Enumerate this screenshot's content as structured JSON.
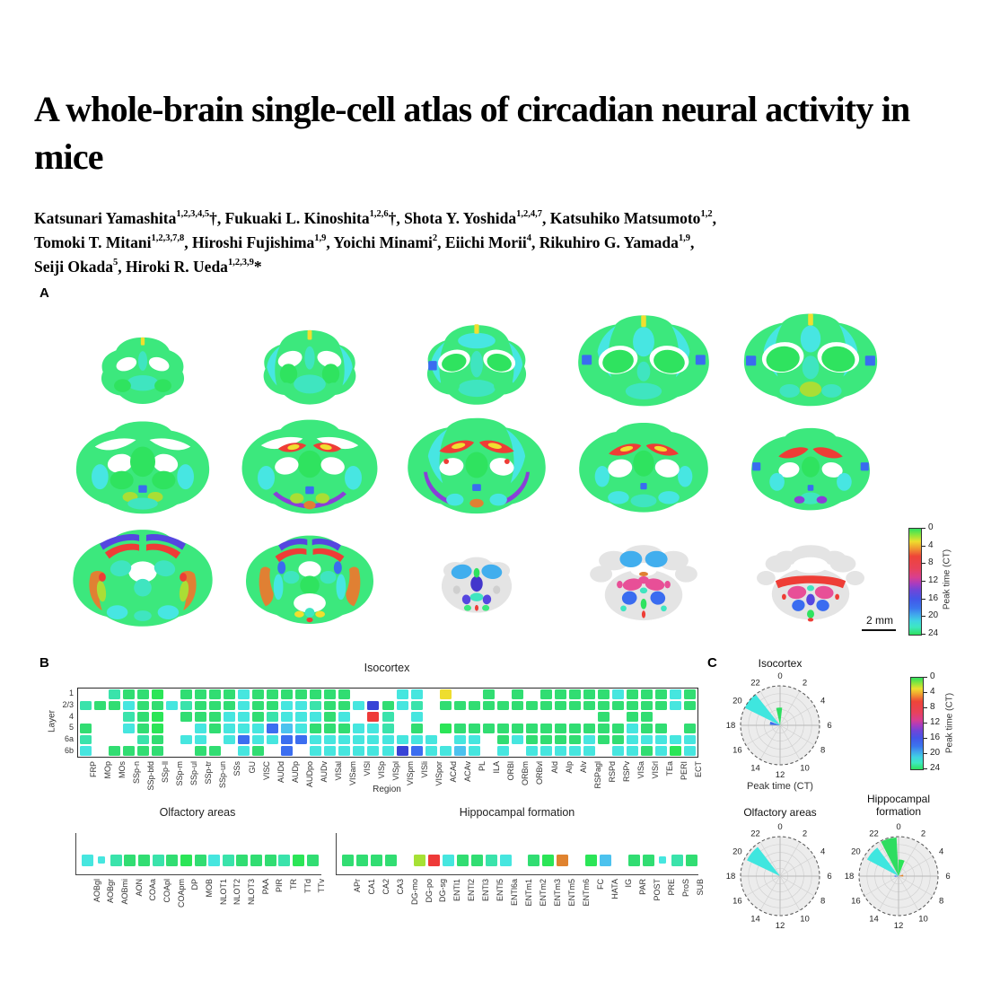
{
  "title": "A whole-brain single-cell atlas of circadian neural activity in mice",
  "authors": [
    [
      {
        "t": "Katsunari Yamashita",
        "s": "1,2,3,4,5"
      },
      {
        "t": "†, "
      },
      {
        "t": "Fukuaki L. Kinoshita",
        "s": "1,2,6"
      },
      {
        "t": "†, "
      },
      {
        "t": "Shota Y. Yoshida",
        "s": "1,2,4,7"
      },
      {
        "t": ", "
      },
      {
        "t": "Katsuhiko Matsumoto",
        "s": "1,2"
      },
      {
        "t": ","
      }
    ],
    [
      {
        "t": "Tomoki T. Mitani",
        "s": "1,2,3,7,8"
      },
      {
        "t": ", "
      },
      {
        "t": "Hiroshi Fujishima",
        "s": "1,9"
      },
      {
        "t": ", "
      },
      {
        "t": "Yoichi Minami",
        "s": "2"
      },
      {
        "t": ", "
      },
      {
        "t": "Eiichi Morii",
        "s": "4"
      },
      {
        "t": ", "
      },
      {
        "t": "Rikuhiro G. Yamada",
        "s": "1,9"
      },
      {
        "t": ","
      }
    ],
    [
      {
        "t": "Seiji Okada",
        "s": "5"
      },
      {
        "t": ", "
      },
      {
        "t": "Hiroki R. Ueda",
        "s": "1,2,3,9"
      },
      {
        "t": "*"
      }
    ]
  ],
  "heatmap_palette": {
    "G": "#31dd72",
    "E": "#2be557",
    "T": "#3ae3ab",
    "C": "#46e6df",
    "L": "#4cc2ee",
    "B": "#3b6ef0",
    "D": "#3843d6",
    "R": "#ee3a38",
    "Y": "#eedd2f",
    "O": "#e0832f",
    "YG": "#a6e135",
    "c": "#46e6df"
  },
  "panel_a": {
    "label": "A",
    "scalebar_label": "2 mm",
    "colorbar": {
      "label": "Peak time (CT)",
      "ticks": [
        "0",
        "4",
        "8",
        "12",
        "16",
        "20",
        "24"
      ]
    }
  },
  "panel_b": {
    "label": "B",
    "isocortex": {
      "title": "Isocortex",
      "xlabel": "Region",
      "ylabel": "Layer",
      "row_labels": [
        "1",
        "2/3",
        "4",
        "5",
        "6a",
        "6b"
      ],
      "col_labels": [
        "FRP",
        "MOp",
        "MOs",
        "SSp-n",
        "SSp-bfd",
        "SSp-ll",
        "SSp-m",
        "SSp-ul",
        "SSp-tr",
        "SSp-un",
        "SSs",
        "GU",
        "VISC",
        "AUDd",
        "AUDp",
        "AUDpo",
        "AUDv",
        "VISal",
        "VISam",
        "VISl",
        "VISp",
        "VISpl",
        "VISpm",
        "VISli",
        "VISpor",
        "ACAd",
        "ACAv",
        "PL",
        "ILA",
        "ORBl",
        "ORBm",
        "ORBvl",
        "AId",
        "AIp",
        "AIv",
        "RSPagl",
        "RSPd",
        "RSPv",
        "VISa",
        "VISrl",
        "TEa",
        "PERI",
        "ECT"
      ],
      "grid": [
        [
          "",
          "",
          "T",
          "G",
          "G",
          "E",
          "",
          "G",
          "G",
          "G",
          "G",
          "C",
          "G",
          "G",
          "G",
          "G",
          "G",
          "G",
          "G",
          "",
          "",
          "",
          "C",
          "C",
          "",
          "Y",
          "",
          "",
          "G",
          "",
          "G",
          "",
          "G",
          "G",
          "G",
          "G",
          "G",
          "C",
          "G",
          "G",
          "G",
          "C",
          "G"
        ],
        [
          "T",
          "G",
          "G",
          "C",
          "G",
          "G",
          "C",
          "T",
          "G",
          "G",
          "G",
          "C",
          "G",
          "G",
          "C",
          "C",
          "T",
          "G",
          "G",
          "C",
          "D",
          "G",
          "C",
          "T",
          "",
          "G",
          "G",
          "G",
          "G",
          "G",
          "G",
          "G",
          "G",
          "G",
          "G",
          "G",
          "G",
          "G",
          "G",
          "G",
          "G",
          "C",
          "G"
        ],
        [
          "",
          "",
          "",
          "T",
          "G",
          "E",
          "",
          "G",
          "G",
          "G",
          "C",
          "C",
          "G",
          "T",
          "C",
          "C",
          "C",
          "G",
          "C",
          "",
          "R",
          "T",
          "",
          "C",
          "",
          "",
          "",
          "",
          "",
          "",
          "",
          "",
          "",
          "",
          "",
          "",
          "G",
          "",
          "G",
          "G",
          "",
          "",
          ""
        ],
        [
          "G",
          "",
          "",
          "C",
          "G",
          "E",
          "",
          "",
          "C",
          "G",
          "C",
          "C",
          "C",
          "B",
          "L",
          "C",
          "G",
          "G",
          "G",
          "C",
          "C",
          "T",
          "",
          "G",
          "",
          "E",
          "G",
          "G",
          "G",
          "G",
          "G",
          "G",
          "G",
          "G",
          "G",
          "G",
          "G",
          "G",
          "C",
          "G",
          "G",
          "",
          "G"
        ],
        [
          "T",
          "",
          "",
          "",
          "T",
          "G",
          "",
          "C",
          "C",
          "",
          "C",
          "B",
          "C",
          "C",
          "B",
          "B",
          "C",
          "C",
          "C",
          "C",
          "C",
          "C",
          "C",
          "C",
          "C",
          "",
          "C",
          "C",
          "",
          "G",
          "C",
          "G",
          "G",
          "G",
          "G",
          "C",
          "G",
          "G",
          "C",
          "C",
          "C",
          "C",
          "C"
        ],
        [
          "C",
          "",
          "G",
          "G",
          "G",
          "G",
          "",
          "",
          "G",
          "G",
          "",
          "C",
          "G",
          "",
          "B",
          "",
          "C",
          "C",
          "C",
          "C",
          "C",
          "C",
          "D",
          "B",
          "C",
          "C",
          "L",
          "C",
          "",
          "C",
          "",
          "C",
          "C",
          "C",
          "C",
          "C",
          "",
          "C",
          "C",
          "G",
          "C",
          "E",
          "C"
        ]
      ]
    },
    "olfactory": {
      "title": "Olfactory areas",
      "col_labels": [
        "AOBgl",
        "AOBgr",
        "AOBmi",
        "AON",
        "COAa",
        "COApl",
        "COApm",
        "DP",
        "MOB",
        "NLOT1",
        "NLOT2",
        "NLOT3",
        "PAA",
        "PIR",
        "TR",
        "TTd",
        "TTv"
      ],
      "cells": [
        "C",
        "c",
        "T",
        "G",
        "G",
        "T",
        "G",
        "E",
        "G",
        "C",
        "T",
        "G",
        "G",
        "G",
        "T",
        "E",
        "G"
      ]
    },
    "hippocampal": {
      "title": "Hippocampal formation",
      "col_labels": [
        "APr",
        "CA1",
        "CA2",
        "CA3",
        "DG-mo",
        "DG-po",
        "DG-sg",
        "ENTl1",
        "ENTl2",
        "ENTl3",
        "ENTl5",
        "ENTl6a",
        "ENTm1",
        "ENTm2",
        "ENTm3",
        "ENTm5",
        "ENTm6",
        "FC",
        "HATA",
        "IG",
        "PAR",
        "POST",
        "PRE",
        "ProS",
        "SUB"
      ],
      "cells": [
        "G",
        "G",
        "G",
        "G",
        "",
        "YG",
        "R",
        "C",
        "G",
        "G",
        "T",
        "C",
        "",
        "G",
        "E",
        "O",
        "",
        "E",
        "L",
        "",
        "G",
        "G",
        "c",
        "T",
        "G"
      ]
    }
  },
  "panel_c": {
    "label": "C",
    "colorbar": {
      "label": "Peak time (CT)",
      "ticks": [
        "0",
        "4",
        "8",
        "12",
        "16",
        "20",
        "24"
      ]
    },
    "hour_ticks": [
      "0",
      "2",
      "4",
      "6",
      "8",
      "10",
      "12",
      "14",
      "16",
      "18",
      "20",
      "22"
    ],
    "plots": [
      {
        "title": "Isocortex",
        "xlabel": "Peak time (CT)",
        "wedges": [
          {
            "t": 20.6,
            "r": 1.0,
            "w": 1.7,
            "color": "#3fe6df"
          },
          {
            "t": 23.8,
            "r": 0.45,
            "w": 1.3,
            "color": "#2edd60"
          },
          {
            "t": 18.8,
            "r": 0.26,
            "w": 1.2,
            "color": "#3b6ef0"
          }
        ]
      },
      {
        "title": "Olfactory areas",
        "wedges": [
          {
            "t": 20.6,
            "r": 0.93,
            "w": 1.8,
            "color": "#3fe6df"
          }
        ]
      },
      {
        "title": "Hippocampal\nformation",
        "wedges": [
          {
            "t": 23.0,
            "r": 0.98,
            "w": 1.6,
            "color": "#2edd60"
          },
          {
            "t": 20.7,
            "r": 0.9,
            "w": 1.7,
            "color": "#3fe6df"
          },
          {
            "t": 0.7,
            "r": 0.42,
            "w": 1.4,
            "color": "#2be557"
          },
          {
            "t": 5.6,
            "r": 0.12,
            "w": 1.6,
            "color": "#e0832f"
          },
          {
            "t": 17.9,
            "r": 0.1,
            "w": 1.4,
            "color": "#3b6ef0"
          }
        ]
      }
    ]
  }
}
